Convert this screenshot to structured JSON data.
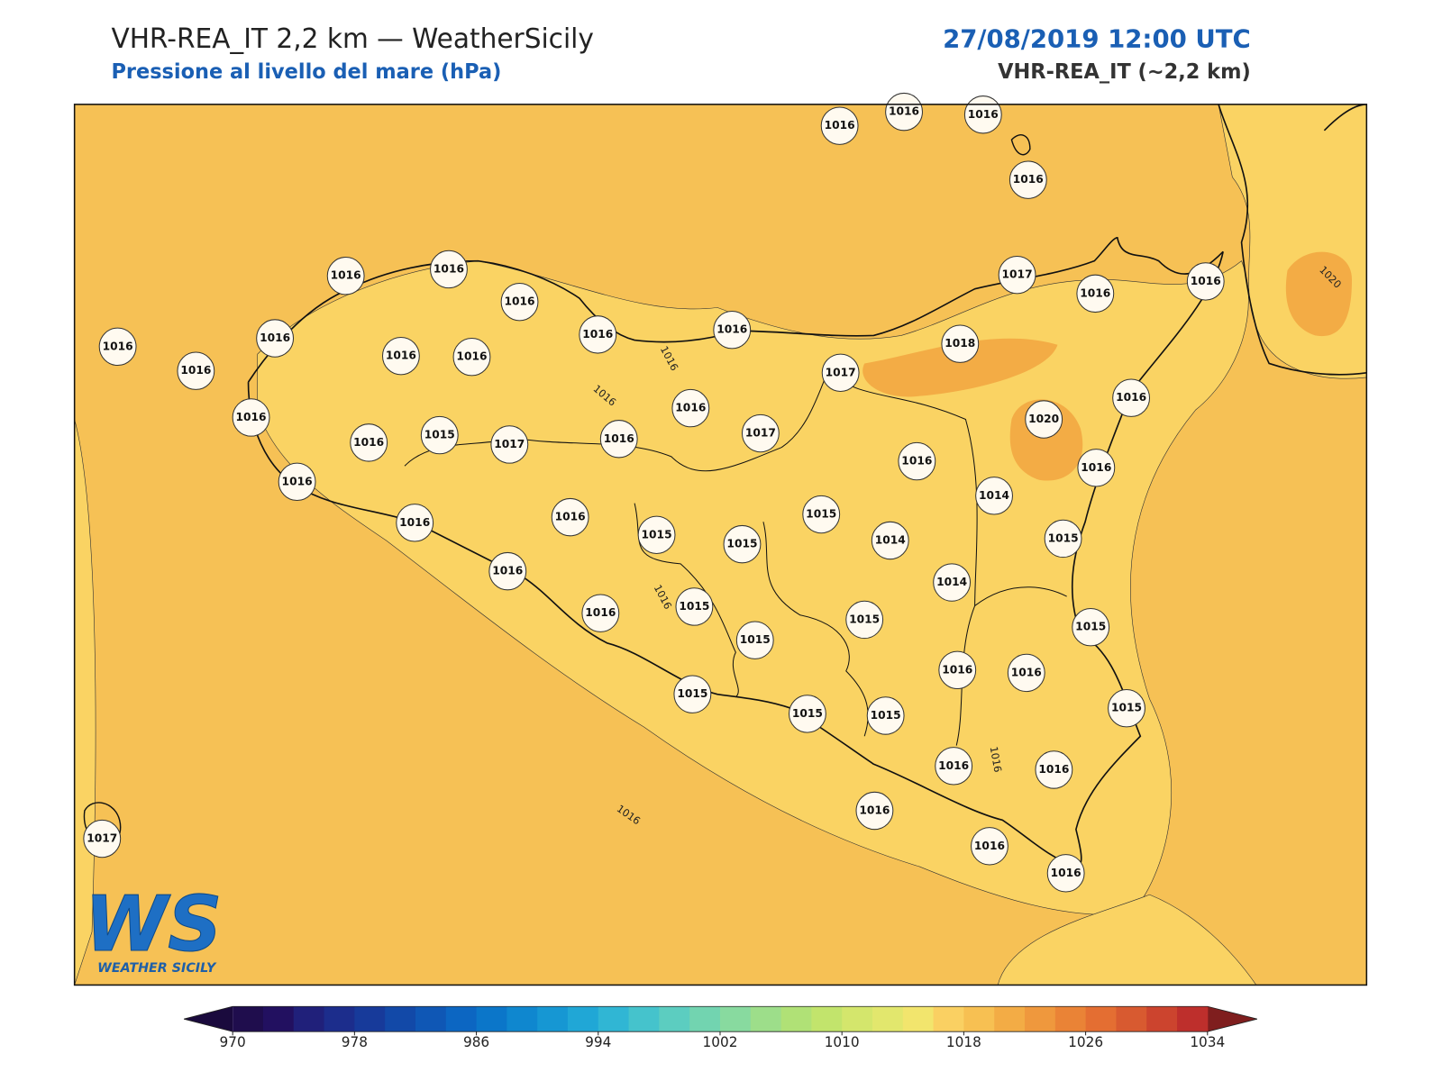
{
  "header": {
    "title": "VHR-REA_IT 2,2 km — WeatherSicily",
    "subtitle": "Pressione al livello del mare (hPa)",
    "datetime": "27/08/2019 12:00 UTC",
    "model": "VHR-REA_IT (~2,2 km)"
  },
  "map": {
    "stations": [
      1016,
      1016,
      1016,
      1016,
      1016,
      1016,
      1016,
      1017,
      1016,
      1016,
      1016,
      1016,
      1016,
      1016,
      1018,
      1016,
      1016,
      1016,
      1017,
      1016,
      1016,
      1016,
      1020,
      1016,
      1015,
      1017,
      1016,
      1017,
      1016,
      1016,
      1016,
      1014,
      1015,
      1016,
      1016,
      1015,
      1015,
      1014,
      1015,
      1016,
      1014,
      1016,
      1015,
      1015,
      1015,
      1015,
      1016,
      1016,
      1015,
      1015,
      1015,
      1015,
      1016,
      1016,
      1016,
      1017,
      1016,
      1016
    ],
    "contour_labels": [
      1016,
      1016,
      1016,
      1016,
      1016,
      1020
    ],
    "sea_color": "#f6c155",
    "land_color": "#fad363",
    "high_color": "#f3ac45"
  },
  "logo": {
    "mark": "WS",
    "text": "WEATHER SICILY"
  },
  "colorbar": {
    "lim": [
      970,
      1034
    ],
    "ticks": [
      970,
      978,
      986,
      994,
      1002,
      1010,
      1018,
      1026,
      1034
    ],
    "colors": [
      "#1f0d4d",
      "#221060",
      "#20207a",
      "#1c2d8c",
      "#173a9a",
      "#1249a8",
      "#0f57b5",
      "#0c66c2",
      "#0b76c9",
      "#0f87cf",
      "#1697d3",
      "#20a7d6",
      "#30b6d4",
      "#45c3cc",
      "#5ccdc0",
      "#72d4b0",
      "#88da9f",
      "#9dde8a",
      "#b0e176",
      "#c2e46c",
      "#d4e66c",
      "#e2e76d",
      "#f2e56d",
      "#fad062",
      "#f7c052",
      "#f3ac45",
      "#ef983d",
      "#ea8336",
      "#e46e32",
      "#d85a30",
      "#cc442e",
      "#be2f2c"
    ],
    "under": "#1a0a3d",
    "over": "#7f1e1e"
  }
}
